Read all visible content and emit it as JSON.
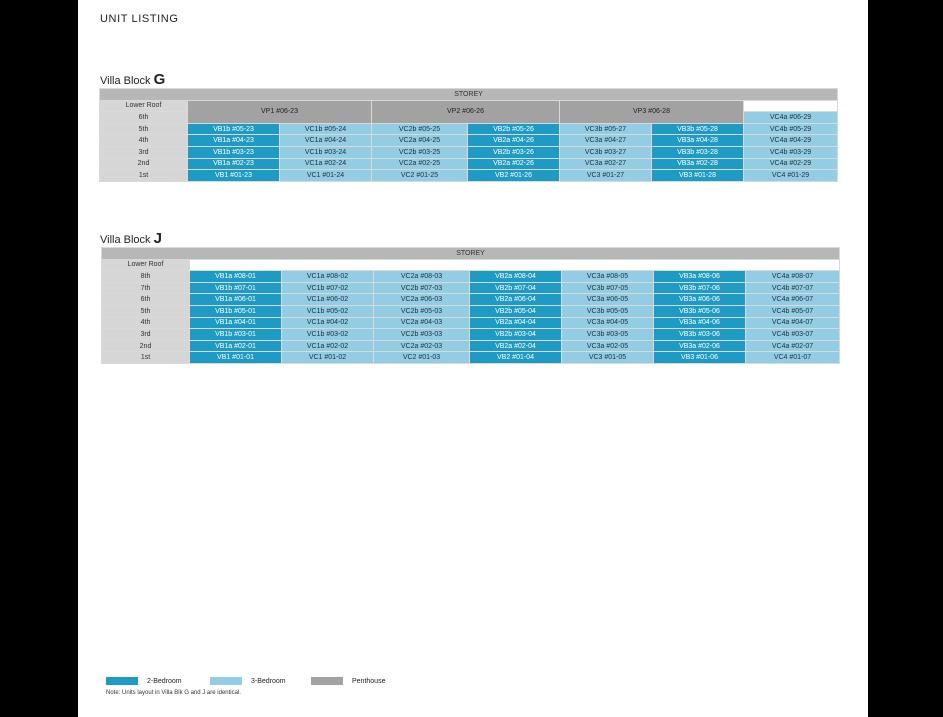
{
  "title": "UNIT LISTING",
  "colors": {
    "two_bedroom": "#1e9bc4",
    "three_bedroom": "#93cde3",
    "penthouse": "#a2a2a2",
    "storey_header": "#b7b7b7",
    "row_label": "#d6d6d6"
  },
  "block_g": {
    "title_prefix": "Villa Block",
    "title_letter": "G",
    "storey_label": "STOREY",
    "rows": {
      "lower_roof": "Lower Roof",
      "r6": "6th",
      "r5": "5th",
      "r4": "4th",
      "r3": "3rd",
      "r2": "2nd",
      "r1": "1st"
    },
    "penthouses": [
      "VP1  #06-23",
      "VP2  #06-26",
      "VP3  #06-28"
    ],
    "vc4a_6th": "VC4a  #06-29",
    "units": {
      "r5": [
        "VB1b  #05-23",
        "VC1b  #05-24",
        "VC2b  #05-25",
        "VB2b  #05-26",
        "VC3b  #05-27",
        "VB3b  #05-28",
        "VC4b  #05-29"
      ],
      "r4": [
        "VB1a  #04-23",
        "VC1a  #04-24",
        "VC2a  #04-25",
        "VB2a  #04-26",
        "VC3a  #04-27",
        "VB3a  #04-28",
        "VC4a  #04-29"
      ],
      "r3": [
        "VB1b  #03-23",
        "VC1b  #03-24",
        "VC2b  #03-25",
        "VB2b  #03-26",
        "VC3b  #03-27",
        "VB3b  #03-28",
        "VC4b  #03-29"
      ],
      "r2": [
        "VB1a  #02-23",
        "VC1a  #02-24",
        "VC2a  #02-25",
        "VB2a  #02-26",
        "VC3a  #02-27",
        "VB3a  #02-28",
        "VC4a  #02-29"
      ],
      "r1": [
        "VB1  #01-23",
        "VC1  #01-24",
        "VC2  #01-25",
        "VB2  #01-26",
        "VC3  #01-27",
        "VB3  #01-28",
        "VC4  #01-29"
      ]
    }
  },
  "block_j": {
    "title_prefix": "Villa Block",
    "title_letter": "J",
    "storey_label": "STOREY",
    "rows": {
      "lower_roof": "Lower Roof",
      "r8": "8th",
      "r7": "7th",
      "r6": "6th",
      "r5": "5th",
      "r4": "4th",
      "r3": "3rd",
      "r2": "2nd",
      "r1": "1st"
    },
    "units": {
      "r8": [
        "VB1a  #08-01",
        "VC1a  #08-02",
        "VC2a  #08-03",
        "VB2a  #08-04",
        "VC3a  #08-05",
        "VB3a  #08-06",
        "VC4a  #08-07"
      ],
      "r7": [
        "VB1b  #07-01",
        "VC1b  #07-02",
        "VC2b  #07-03",
        "VB2b  #07-04",
        "VC3b  #07-05",
        "VB3b  #07-06",
        "VC4b  #07-07"
      ],
      "r6": [
        "VB1a  #06-01",
        "VC1a  #06-02",
        "VC2a  #06-03",
        "VB2a  #06-04",
        "VC3a  #06-05",
        "VB3a  #06-06",
        "VC4a  #06-07"
      ],
      "r5": [
        "VB1b  #05-01",
        "VC1b  #05-02",
        "VC2b  #05-03",
        "VB2b  #05-04",
        "VC3b  #05-05",
        "VB3b  #05-06",
        "VC4b  #05-07"
      ],
      "r4": [
        "VB1a  #04-01",
        "VC1a  #04-02",
        "VC2a  #04-03",
        "VB2a  #04-04",
        "VC3a  #04-05",
        "VB3a  #04-06",
        "VC4a  #04-07"
      ],
      "r3": [
        "VB1b  #03-01",
        "VC1b  #03-02",
        "VC2b  #03-03",
        "VB2b  #03-04",
        "VC3b  #03-05",
        "VB3b  #03-06",
        "VC4b  #03-07"
      ],
      "r2": [
        "VB1a  #02-01",
        "VC1a  #02-02",
        "VC2a  #02-03",
        "VB2a  #02-04",
        "VC3a  #02-05",
        "VB3a  #02-06",
        "VC4a  #02-07"
      ],
      "r1": [
        "VB1  #01-01",
        "VC1  #01-02",
        "VC2  #01-03",
        "VB2  #01-04",
        "VC3  #01-05",
        "VB3  #01-06",
        "VC4  #01-07"
      ]
    }
  },
  "legend": {
    "two_bedroom": "2-Bedroom",
    "three_bedroom": "3-Bedroom",
    "penthouse": "Penthouse",
    "note": "Note: Units layout in Villa Blk G and J are identical."
  }
}
